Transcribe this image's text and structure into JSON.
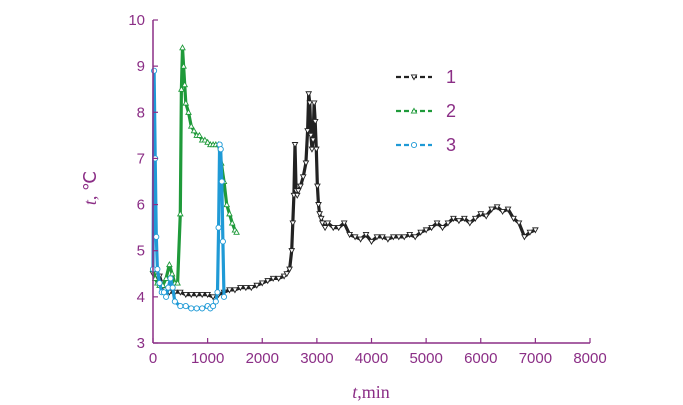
{
  "chart_data": {
    "type": "line",
    "xlabel_var": "t",
    "xlabel_unit": ",min",
    "ylabel_var": "t",
    "ylabel_unit": ", ℃",
    "xlim": [
      0,
      8000
    ],
    "ylim": [
      3,
      10
    ],
    "xticks": [
      0,
      1000,
      2000,
      3000,
      4000,
      5000,
      6000,
      7000,
      8000
    ],
    "yticks": [
      3,
      4,
      5,
      6,
      7,
      8,
      9,
      10
    ],
    "grid": false,
    "legend_position": "top-right",
    "series": [
      {
        "name": "1",
        "color": "#222222",
        "marker": "triangle-down",
        "x": [
          0,
          40,
          80,
          120,
          160,
          220,
          300,
          400,
          500,
          600,
          700,
          800,
          900,
          1000,
          1100,
          1200,
          1300,
          1400,
          1500,
          1600,
          1700,
          1800,
          1900,
          2000,
          2100,
          2200,
          2300,
          2400,
          2450,
          2500,
          2540,
          2560,
          2580,
          2600,
          2620,
          2640,
          2660,
          2700,
          2750,
          2800,
          2830,
          2850,
          2870,
          2890,
          2910,
          2930,
          2950,
          2970,
          2990,
          3010,
          3030,
          3050,
          3080,
          3100,
          3150,
          3200,
          3300,
          3400,
          3500,
          3600,
          3700,
          3800,
          3900,
          4000,
          4100,
          4200,
          4300,
          4400,
          4500,
          4600,
          4700,
          4800,
          4900,
          5000,
          5100,
          5200,
          5300,
          5400,
          5500,
          5600,
          5700,
          5800,
          5900,
          6000,
          6100,
          6200,
          6300,
          6400,
          6500,
          6600,
          6700,
          6800,
          6900,
          7000
        ],
        "y": [
          4.5,
          4.5,
          4.45,
          4.45,
          4.3,
          4.15,
          4.1,
          4.1,
          4.1,
          4.05,
          4.05,
          4.05,
          4.05,
          4.05,
          4.0,
          4.05,
          4.1,
          4.15,
          4.15,
          4.2,
          4.2,
          4.2,
          4.25,
          4.3,
          4.35,
          4.4,
          4.4,
          4.45,
          4.5,
          4.6,
          5.0,
          5.6,
          6.2,
          7.3,
          6.3,
          6.2,
          6.3,
          6.4,
          6.6,
          6.9,
          7.6,
          8.4,
          8.2,
          7.5,
          7.2,
          7.4,
          8.2,
          7.8,
          7.2,
          6.4,
          6.0,
          5.8,
          5.7,
          5.6,
          5.5,
          5.6,
          5.5,
          5.5,
          5.6,
          5.35,
          5.3,
          5.25,
          5.35,
          5.2,
          5.3,
          5.3,
          5.25,
          5.3,
          5.3,
          5.3,
          5.35,
          5.3,
          5.4,
          5.45,
          5.5,
          5.6,
          5.5,
          5.6,
          5.7,
          5.65,
          5.7,
          5.6,
          5.7,
          5.8,
          5.75,
          5.9,
          5.95,
          5.85,
          5.9,
          5.7,
          5.6,
          5.3,
          5.4,
          5.45
        ]
      },
      {
        "name": "2",
        "color": "#1f9a3a",
        "marker": "triangle-up",
        "x": [
          0,
          40,
          80,
          120,
          180,
          240,
          300,
          350,
          400,
          450,
          500,
          520,
          540,
          560,
          580,
          600,
          650,
          700,
          750,
          800,
          850,
          900,
          950,
          1000,
          1050,
          1100,
          1150,
          1200,
          1250,
          1300,
          1350,
          1400,
          1450,
          1500,
          1530
        ],
        "y": [
          4.6,
          4.4,
          4.3,
          4.25,
          4.25,
          4.4,
          4.7,
          4.5,
          4.3,
          4.3,
          5.8,
          8.5,
          9.4,
          9.0,
          8.6,
          8.2,
          8.0,
          7.7,
          7.6,
          7.5,
          7.5,
          7.4,
          7.4,
          7.35,
          7.3,
          7.3,
          7.3,
          7.3,
          6.9,
          6.5,
          6.0,
          5.8,
          5.6,
          5.45,
          5.4
        ]
      },
      {
        "name": "3",
        "color": "#1f9ad6",
        "marker": "circle",
        "x": [
          0,
          20,
          40,
          60,
          80,
          120,
          160,
          200,
          240,
          280,
          320,
          360,
          400,
          500,
          600,
          700,
          800,
          900,
          1000,
          1050,
          1100,
          1150,
          1180,
          1200,
          1220,
          1240,
          1260,
          1280,
          1300
        ],
        "y": [
          4.6,
          8.9,
          7.0,
          5.3,
          4.6,
          4.3,
          4.1,
          4.1,
          4.0,
          4.2,
          4.4,
          4.2,
          3.9,
          3.8,
          3.8,
          3.75,
          3.75,
          3.75,
          3.8,
          3.75,
          3.8,
          3.9,
          4.1,
          5.5,
          7.3,
          7.2,
          6.5,
          5.2,
          4.0
        ]
      }
    ]
  }
}
